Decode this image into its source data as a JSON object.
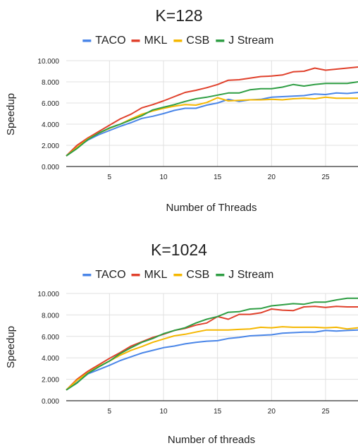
{
  "colors": {
    "TACO": "#4a86e8",
    "MKL": "#e0412c",
    "CSB": "#f5b700",
    "J Stream": "#2f9e44",
    "grid": "#e0e0e0",
    "axis": "#333333",
    "text": "#222222"
  },
  "chart_data": [
    {
      "type": "line",
      "title": "K=128",
      "xlabel": "Number of Threads",
      "ylabel": "Speedup",
      "xlim": [
        1,
        28
      ],
      "ylim": [
        0,
        10
      ],
      "xticks": [
        5,
        10,
        15,
        20,
        25
      ],
      "yticks": [
        "0.000",
        "2.000",
        "4.000",
        "6.000",
        "8.000",
        "10.000"
      ],
      "ytick_values": [
        0,
        2,
        4,
        6,
        8,
        10
      ],
      "grid": true,
      "legend_position": "top",
      "x": [
        1,
        2,
        3,
        4,
        5,
        6,
        7,
        8,
        9,
        10,
        11,
        12,
        13,
        14,
        15,
        16,
        17,
        18,
        19,
        20,
        21,
        22,
        23,
        24,
        25,
        26,
        27,
        28
      ],
      "series": [
        {
          "name": "TACO",
          "values": [
            1.0,
            1.8,
            2.5,
            3.0,
            3.4,
            3.8,
            4.15,
            4.55,
            4.75,
            5.0,
            5.3,
            5.5,
            5.5,
            5.8,
            6.0,
            6.35,
            6.15,
            6.3,
            6.35,
            6.55,
            6.6,
            6.65,
            6.7,
            6.85,
            6.8,
            6.95,
            6.9,
            7.0
          ]
        },
        {
          "name": "MKL",
          "values": [
            1.0,
            2.0,
            2.7,
            3.3,
            3.9,
            4.5,
            4.95,
            5.55,
            5.85,
            6.2,
            6.6,
            7.0,
            7.2,
            7.45,
            7.75,
            8.15,
            8.2,
            8.35,
            8.5,
            8.55,
            8.65,
            8.95,
            9.0,
            9.3,
            9.1,
            9.2,
            9.3,
            9.4
          ]
        },
        {
          "name": "CSB",
          "values": [
            1.0,
            1.8,
            2.6,
            3.15,
            3.6,
            4.0,
            4.5,
            4.95,
            5.25,
            5.5,
            5.7,
            5.85,
            5.8,
            6.05,
            6.5,
            6.2,
            6.25,
            6.3,
            6.3,
            6.35,
            6.3,
            6.4,
            6.45,
            6.4,
            6.55,
            6.45,
            6.45,
            6.45
          ]
        },
        {
          "name": "J Stream",
          "values": [
            1.0,
            1.7,
            2.55,
            3.15,
            3.65,
            4.0,
            4.4,
            4.8,
            5.35,
            5.6,
            5.85,
            6.15,
            6.4,
            6.55,
            6.75,
            6.95,
            6.95,
            7.25,
            7.35,
            7.35,
            7.5,
            7.75,
            7.6,
            7.75,
            7.85,
            7.85,
            7.85,
            8.0
          ]
        }
      ]
    },
    {
      "type": "line",
      "title": "K=1024",
      "xlabel": "Number of threads",
      "ylabel": "Speedup",
      "xlim": [
        1,
        28
      ],
      "ylim": [
        0,
        10
      ],
      "xticks": [
        5,
        10,
        15,
        20,
        25
      ],
      "yticks": [
        "0.000",
        "2.000",
        "4.000",
        "6.000",
        "8.000",
        "10.000"
      ],
      "ytick_values": [
        0,
        2,
        4,
        6,
        8,
        10
      ],
      "grid": true,
      "legend_position": "top",
      "x": [
        1,
        2,
        3,
        4,
        5,
        6,
        7,
        8,
        9,
        10,
        11,
        12,
        13,
        14,
        15,
        16,
        17,
        18,
        19,
        20,
        21,
        22,
        23,
        24,
        25,
        26,
        27,
        28
      ],
      "series": [
        {
          "name": "TACO",
          "values": [
            1.0,
            1.7,
            2.5,
            2.9,
            3.3,
            3.75,
            4.1,
            4.45,
            4.7,
            4.95,
            5.1,
            5.3,
            5.45,
            5.55,
            5.6,
            5.8,
            5.9,
            6.05,
            6.1,
            6.15,
            6.3,
            6.35,
            6.4,
            6.4,
            6.55,
            6.5,
            6.55,
            6.6
          ]
        },
        {
          "name": "MKL",
          "values": [
            1.0,
            2.0,
            2.75,
            3.35,
            3.95,
            4.5,
            5.1,
            5.5,
            5.9,
            6.2,
            6.55,
            6.75,
            7.05,
            7.25,
            7.85,
            7.6,
            8.05,
            8.05,
            8.2,
            8.55,
            8.45,
            8.4,
            8.75,
            8.8,
            8.7,
            8.8,
            8.75,
            8.75
          ]
        },
        {
          "name": "CSB",
          "values": [
            1.0,
            1.9,
            2.6,
            3.2,
            3.7,
            4.25,
            4.7,
            5.05,
            5.45,
            5.75,
            6.05,
            6.2,
            6.4,
            6.6,
            6.6,
            6.6,
            6.65,
            6.7,
            6.85,
            6.8,
            6.9,
            6.85,
            6.85,
            6.85,
            6.8,
            6.85,
            6.7,
            6.8
          ]
        },
        {
          "name": "J Stream",
          "values": [
            1.0,
            1.65,
            2.55,
            3.15,
            3.7,
            4.4,
            4.95,
            5.45,
            5.8,
            6.25,
            6.55,
            6.8,
            7.25,
            7.6,
            7.85,
            8.25,
            8.3,
            8.55,
            8.6,
            8.85,
            8.95,
            9.05,
            9.0,
            9.2,
            9.2,
            9.4,
            9.55,
            9.55
          ]
        }
      ]
    }
  ]
}
